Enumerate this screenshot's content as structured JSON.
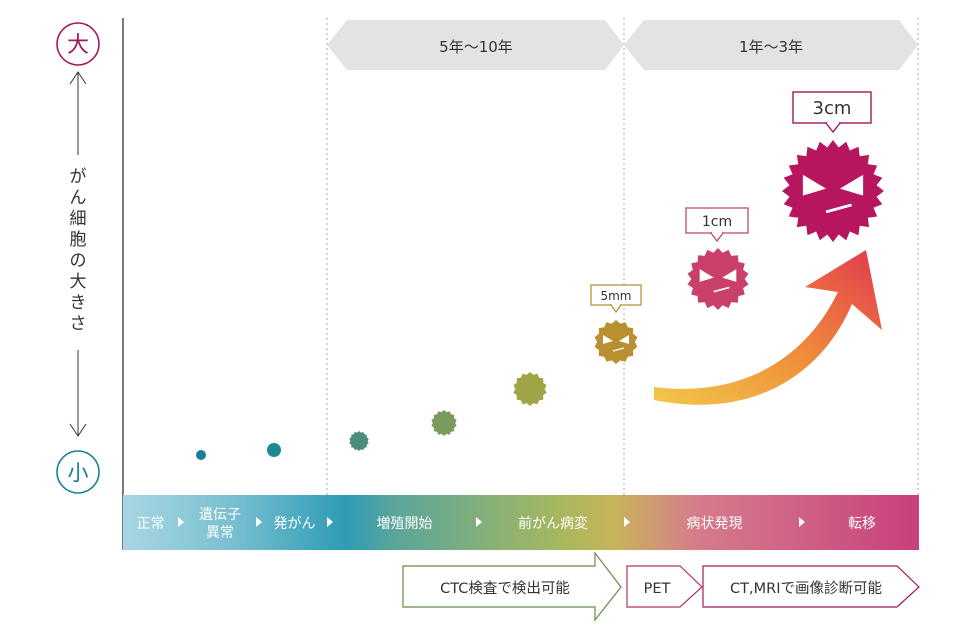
{
  "size_axis": {
    "top": "大",
    "bottom": "小",
    "label_chars": [
      "が",
      "ん",
      "細",
      "胞",
      "の",
      "大",
      "き",
      "さ"
    ],
    "top_color": "#a3185f",
    "bottom_color": "#1b7f96"
  },
  "periods": [
    {
      "label": "5年〜10年"
    },
    {
      "label": "1年〜3年"
    }
  ],
  "tumor_sizes": {
    "small": "5mm",
    "medium": "1cm",
    "large": "3cm"
  },
  "stages": [
    {
      "lines": [
        "正常"
      ],
      "color": "#9fd0dd"
    },
    {
      "lines": [
        "遺伝子",
        "異常"
      ],
      "color": "#6db8cc"
    },
    {
      "lines": [
        "発がん"
      ],
      "color": "#2e9bb5"
    },
    {
      "lines": [
        "増殖開始"
      ],
      "color": "#5aa59a"
    },
    {
      "lines": [
        "前がん病変"
      ],
      "color": "#c8b35a"
    },
    {
      "lines": [
        "病状発現"
      ],
      "color": "#d5718a"
    },
    {
      "lines": [
        "転移"
      ],
      "color": "#c8407e"
    }
  ],
  "detection": [
    {
      "label": "CTC検査で検出可能"
    },
    {
      "label": "PET"
    },
    {
      "label": "CT,MRIで画像診断可能"
    }
  ],
  "colors": {
    "magenta": "#a3185f",
    "teal": "#1b7f96",
    "period_arrow": "#e3e3e3",
    "detection_border": "#6b8a4a"
  }
}
